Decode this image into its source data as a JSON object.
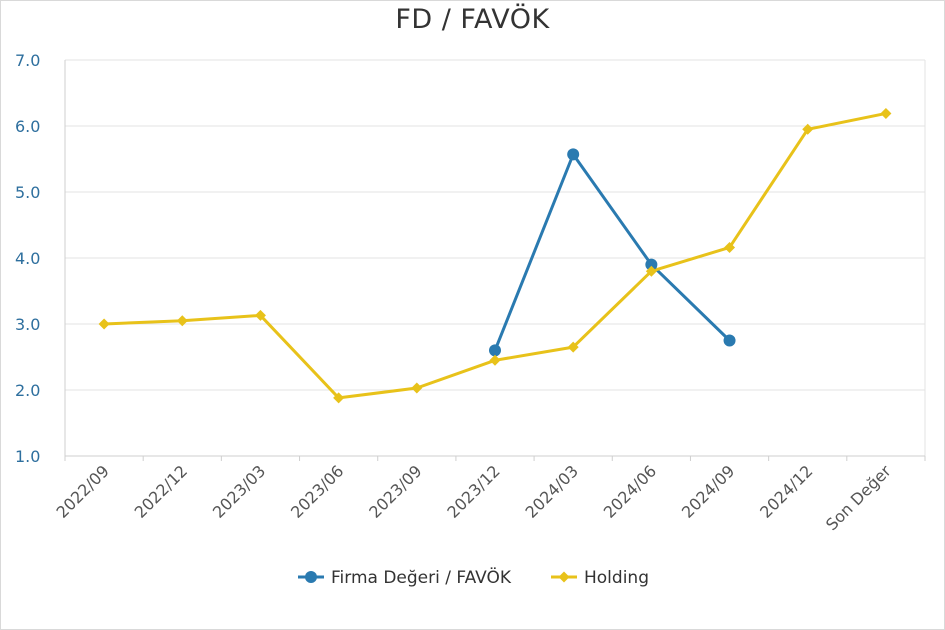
{
  "chart_data": {
    "type": "line",
    "title": "FD / FAVÖK",
    "x": [
      "2022/09",
      "2022/12",
      "2023/03",
      "2023/06",
      "2023/09",
      "2023/12",
      "2024/03",
      "2024/06",
      "2024/09",
      "2024/12",
      "Son Değer"
    ],
    "ylim": [
      1.0,
      7.0
    ],
    "yticks": [
      "1.0",
      "2.0",
      "3.0",
      "4.0",
      "5.0",
      "6.0",
      "7.0"
    ],
    "grid": true,
    "legend_position": "bottom",
    "series": [
      {
        "name": "Firma Değeri / FAVÖK",
        "color": "#2a7ab0",
        "marker": "circle",
        "values": [
          null,
          null,
          null,
          null,
          null,
          2.6,
          5.57,
          3.9,
          2.75,
          null,
          null
        ]
      },
      {
        "name": "Holding",
        "color": "#e8c21a",
        "marker": "diamond",
        "values": [
          3.0,
          3.05,
          3.13,
          1.88,
          2.03,
          2.45,
          2.65,
          3.8,
          4.16,
          5.95,
          6.19
        ]
      }
    ]
  }
}
